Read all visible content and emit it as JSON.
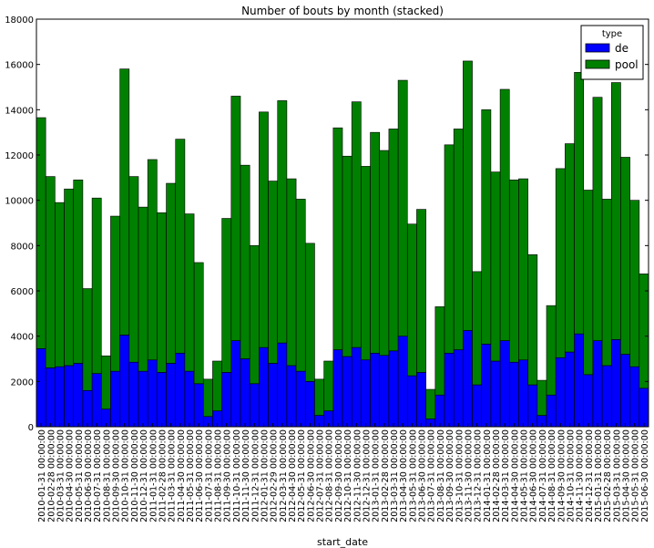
{
  "chart_data": {
    "type": "bar",
    "stacked": true,
    "title": "Number of bouts by month (stacked)",
    "xlabel": "start_date",
    "ylabel": "",
    "ylim": [
      0,
      18000
    ],
    "yticks": [
      0,
      2000,
      4000,
      6000,
      8000,
      10000,
      12000,
      14000,
      16000,
      18000
    ],
    "grid": false,
    "legend": {
      "title": "type",
      "placement": "top-right"
    },
    "categories": [
      "2010-01-31 00:00:00",
      "2010-02-28 00:00:00",
      "2010-03-31 00:00:00",
      "2010-04-30 00:00:00",
      "2010-05-31 00:00:00",
      "2010-06-30 00:00:00",
      "2010-07-31 00:00:00",
      "2010-08-31 00:00:00",
      "2010-09-30 00:00:00",
      "2010-10-31 00:00:00",
      "2010-11-30 00:00:00",
      "2010-12-31 00:00:00",
      "2011-01-31 00:00:00",
      "2011-02-28 00:00:00",
      "2011-03-31 00:00:00",
      "2011-04-30 00:00:00",
      "2011-05-31 00:00:00",
      "2011-06-30 00:00:00",
      "2011-07-31 00:00:00",
      "2011-08-31 00:00:00",
      "2011-09-30 00:00:00",
      "2011-10-31 00:00:00",
      "2011-11-30 00:00:00",
      "2011-12-31 00:00:00",
      "2012-01-31 00:00:00",
      "2012-02-29 00:00:00",
      "2012-03-31 00:00:00",
      "2012-04-30 00:00:00",
      "2012-05-31 00:00:00",
      "2012-06-30 00:00:00",
      "2012-07-31 00:00:00",
      "2012-08-31 00:00:00",
      "2012-09-30 00:00:00",
      "2012-10-31 00:00:00",
      "2012-11-30 00:00:00",
      "2012-12-31 00:00:00",
      "2013-01-31 00:00:00",
      "2013-02-28 00:00:00",
      "2013-03-31 00:00:00",
      "2013-04-30 00:00:00",
      "2013-05-31 00:00:00",
      "2013-06-30 00:00:00",
      "2013-07-31 00:00:00",
      "2013-08-31 00:00:00",
      "2013-09-30 00:00:00",
      "2013-10-31 00:00:00",
      "2013-11-30 00:00:00",
      "2013-12-31 00:00:00",
      "2014-01-31 00:00:00",
      "2014-02-28 00:00:00",
      "2014-03-31 00:00:00",
      "2014-04-30 00:00:00",
      "2014-05-31 00:00:00",
      "2014-06-30 00:00:00",
      "2014-07-31 00:00:00",
      "2014-08-31 00:00:00",
      "2014-09-30 00:00:00",
      "2014-10-31 00:00:00",
      "2014-11-30 00:00:00",
      "2014-12-31 00:00:00",
      "2015-01-31 00:00:00",
      "2015-02-28 00:00:00",
      "2015-03-31 00:00:00",
      "2015-04-30 00:00:00",
      "2015-05-31 00:00:00",
      "2015-06-30 00:00:00"
    ],
    "series": [
      {
        "name": "de",
        "color": "#0000ff",
        "values": [
          3450,
          2600,
          2650,
          2700,
          2800,
          1600,
          2350,
          780,
          2450,
          4050,
          2850,
          2450,
          2950,
          2400,
          2800,
          3250,
          2450,
          1900,
          450,
          700,
          2400,
          3800,
          3000,
          1900,
          3500,
          2800,
          3700,
          2700,
          2450,
          2000,
          500,
          700,
          3400,
          3100,
          3500,
          2950,
          3250,
          3150,
          3350,
          4000,
          2250,
          2400,
          350,
          1400,
          3250,
          3400,
          4250,
          1850,
          3650,
          2900,
          3800,
          2850,
          2950,
          1850,
          500,
          1400,
          3050,
          3300,
          4100,
          2300,
          3800,
          2700,
          3850,
          3200,
          2650,
          1700
        ]
      },
      {
        "name": "pool",
        "color": "#008000",
        "values": [
          10200,
          8450,
          7250,
          7800,
          8100,
          4500,
          7750,
          2350,
          6850,
          11750,
          8200,
          7250,
          8850,
          7050,
          7950,
          9450,
          6950,
          5350,
          1650,
          2200,
          6800,
          10800,
          8550,
          6100,
          10400,
          8050,
          10700,
          8250,
          7600,
          6100,
          1600,
          2200,
          9800,
          8850,
          10850,
          8550,
          9750,
          9050,
          9800,
          11300,
          6700,
          7200,
          1300,
          3900,
          9200,
          9750,
          11900,
          5000,
          10350,
          8350,
          11100,
          8050,
          8000,
          5750,
          1550,
          3950,
          8350,
          9200,
          11550,
          8150,
          10750,
          7350,
          11350,
          8700,
          7350,
          5050
        ]
      }
    ]
  }
}
